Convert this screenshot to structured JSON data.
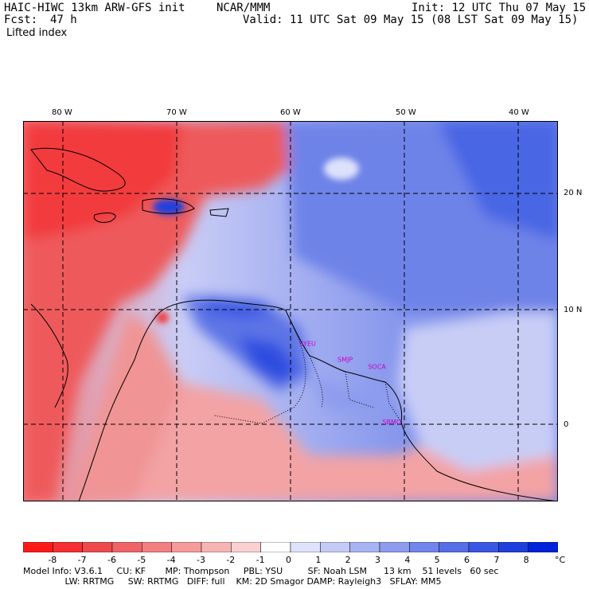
{
  "header": {
    "model": "HAIC-HIWC 13km ARW-GFS init",
    "org": "NCAR/MMM",
    "init": "Init: 12 UTC Thu 07 May 15",
    "fcst_label": "Fcst:",
    "fcst_value": "47 h",
    "valid": "Valid: 11 UTC Sat 09 May 15 (08 LST Sat 09 May 15)",
    "field": "Lifted index"
  },
  "map": {
    "lon_labels": [
      "80 W",
      "70 W",
      "60 W",
      "50 W",
      "40 W"
    ],
    "lat_labels": [
      "20 N",
      "10 N",
      "0"
    ],
    "stations": [
      {
        "name": "SYEU",
        "lon": -58.5,
        "lat": 6.8
      },
      {
        "name": "SMJP",
        "lon": -55.2,
        "lat": 5.4
      },
      {
        "name": "SOCA",
        "lon": -52.4,
        "lat": 4.8
      },
      {
        "name": "SBMQ",
        "lon": -51.1,
        "lat": 0.0
      }
    ]
  },
  "colorbar": {
    "unit": "°C",
    "ticks": [
      "-8",
      "-7",
      "-6",
      "-5",
      "-4",
      "-3",
      "-2",
      "-1",
      "0",
      "1",
      "2",
      "3",
      "4",
      "5",
      "6",
      "7",
      "8"
    ],
    "colors": [
      "#ff1a1a",
      "#f52f33",
      "#ee4a4d",
      "#ef6567",
      "#f27f80",
      "#f69a9a",
      "#f8b4b4",
      "#fbd0d0",
      "#ffffff",
      "#dfe2fb",
      "#c4cbf7",
      "#a8b3f3",
      "#8d9cee",
      "#7285ea",
      "#566ee6",
      "#3a56e2",
      "#1f3fdd",
      "#0022d8"
    ]
  },
  "footer": {
    "line1": "Model Info: V3.6.1     CU: KF       MP: Thompson     PBL: YSU         SF: Noah LSM      13 km    51 levels   60 sec",
    "line2": "               LW: RRTMG     SW: RRTMG   DIFF: full    KM: 2D Smagor DAMP: Rayleigh3   SFLAY: MM5"
  }
}
